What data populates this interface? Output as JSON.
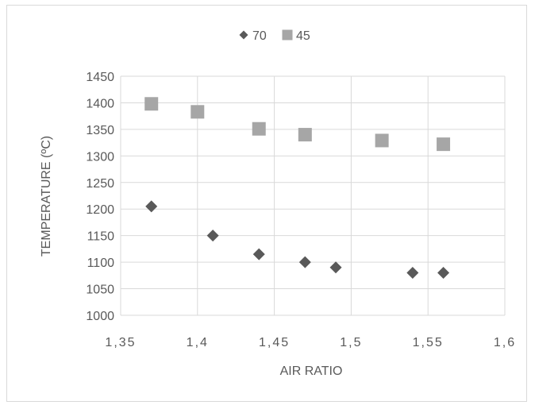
{
  "chart_data": {
    "type": "scatter",
    "title": "",
    "xlabel": "AIR RATIO",
    "ylabel": "TEMPERATURE  (ºC)",
    "xlim": [
      1.35,
      1.6
    ],
    "ylim": [
      1000,
      1450
    ],
    "x_ticks": [
      1.35,
      1.4,
      1.45,
      1.5,
      1.55,
      1.6
    ],
    "x_tick_labels": [
      "1,35",
      "1,4",
      "1,45",
      "1,5",
      "1,55",
      "1,6"
    ],
    "y_ticks": [
      1000,
      1050,
      1100,
      1150,
      1200,
      1250,
      1300,
      1350,
      1400,
      1450
    ],
    "y_tick_labels": [
      "1000",
      "1050",
      "1100",
      "1150",
      "1200",
      "1250",
      "1300",
      "1350",
      "1400",
      "1450"
    ],
    "grid": true,
    "legend_position": "top-center",
    "series": [
      {
        "name": "70",
        "marker": "diamond",
        "color": "#595959",
        "points": [
          {
            "x": 1.37,
            "y": 1205
          },
          {
            "x": 1.41,
            "y": 1150
          },
          {
            "x": 1.44,
            "y": 1115
          },
          {
            "x": 1.47,
            "y": 1100
          },
          {
            "x": 1.49,
            "y": 1090
          },
          {
            "x": 1.54,
            "y": 1080
          },
          {
            "x": 1.56,
            "y": 1080
          }
        ]
      },
      {
        "name": "45",
        "marker": "square",
        "color": "#a6a6a6",
        "points": [
          {
            "x": 1.37,
            "y": 1398
          },
          {
            "x": 1.4,
            "y": 1383
          },
          {
            "x": 1.44,
            "y": 1351
          },
          {
            "x": 1.47,
            "y": 1340
          },
          {
            "x": 1.52,
            "y": 1329
          },
          {
            "x": 1.56,
            "y": 1322
          }
        ]
      }
    ]
  }
}
